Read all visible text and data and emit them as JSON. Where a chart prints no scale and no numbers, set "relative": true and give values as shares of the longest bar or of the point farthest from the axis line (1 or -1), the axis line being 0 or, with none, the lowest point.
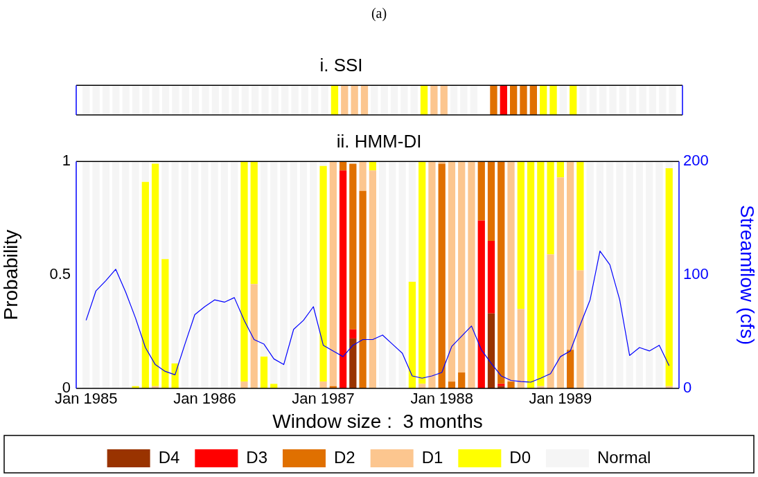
{
  "chart_data": [
    {
      "type": "bar",
      "title": "i. SSI",
      "annotations": [
        "(a)"
      ],
      "stacked": true,
      "relative": true,
      "grid": false,
      "legend": false,
      "x": [
        "1985-01",
        "1985-02",
        "1985-03",
        "1985-04",
        "1985-05",
        "1985-06",
        "1985-07",
        "1985-08",
        "1985-09",
        "1985-10",
        "1985-11",
        "1985-12",
        "1986-01",
        "1986-02",
        "1986-03",
        "1986-04",
        "1986-05",
        "1986-06",
        "1986-07",
        "1986-08",
        "1986-09",
        "1986-10",
        "1986-11",
        "1986-12",
        "1987-01",
        "1987-02",
        "1987-03",
        "1987-04",
        "1987-05",
        "1987-06",
        "1987-07",
        "1987-08",
        "1987-09",
        "1987-10",
        "1987-11",
        "1987-12",
        "1988-01",
        "1988-02",
        "1988-03",
        "1988-04",
        "1988-05",
        "1988-06",
        "1988-07",
        "1988-08",
        "1988-09",
        "1988-10",
        "1988-11",
        "1988-12",
        "1989-01",
        "1989-02",
        "1989-03",
        "1989-04",
        "1989-05",
        "1989-06",
        "1989-07",
        "1989-08",
        "1989-09",
        "1989-10",
        "1989-11",
        "1989-12"
      ],
      "xlim": [
        "1984-12",
        "1990-01"
      ],
      "series": [
        {
          "color": "#ff0000",
          "values": [
            null,
            null,
            null,
            null,
            null,
            null,
            null,
            null,
            null,
            null,
            null,
            null,
            null,
            null,
            null,
            null,
            null,
            null,
            null,
            null,
            null,
            null,
            null,
            null,
            null,
            null,
            null,
            null,
            null,
            null,
            null,
            null,
            null,
            null,
            null,
            null,
            null,
            null,
            null,
            null,
            null,
            null,
            1,
            null,
            null,
            null,
            null,
            null,
            null,
            null,
            null,
            null,
            null,
            null,
            null,
            null,
            null,
            null,
            null,
            null
          ]
        },
        {
          "color": "#e07000",
          "values": [
            null,
            null,
            null,
            null,
            null,
            null,
            null,
            null,
            null,
            null,
            null,
            null,
            null,
            null,
            null,
            null,
            null,
            null,
            null,
            null,
            null,
            null,
            null,
            null,
            null,
            null,
            null,
            null,
            null,
            null,
            null,
            null,
            null,
            null,
            null,
            null,
            null,
            null,
            null,
            null,
            null,
            1,
            null,
            1,
            1,
            1,
            null,
            null,
            null,
            null,
            null,
            null,
            null,
            null,
            null,
            null,
            null,
            null,
            null,
            null
          ]
        },
        {
          "color": "#fcc68f",
          "values": [
            null,
            null,
            null,
            null,
            null,
            null,
            null,
            null,
            null,
            null,
            null,
            null,
            null,
            null,
            null,
            null,
            null,
            null,
            null,
            null,
            null,
            null,
            null,
            null,
            null,
            null,
            1,
            1,
            1,
            null,
            null,
            null,
            null,
            null,
            null,
            1,
            1,
            null,
            null,
            null,
            null,
            null,
            null,
            null,
            null,
            null,
            null,
            null,
            null,
            null,
            null,
            null,
            null,
            null,
            null,
            null,
            null,
            null,
            null,
            null
          ]
        },
        {
          "color": "#ffff00",
          "values": [
            null,
            null,
            null,
            null,
            null,
            null,
            null,
            null,
            null,
            null,
            null,
            null,
            null,
            null,
            null,
            null,
            null,
            null,
            null,
            null,
            null,
            null,
            null,
            null,
            null,
            1,
            null,
            null,
            null,
            null,
            null,
            null,
            null,
            null,
            1,
            null,
            null,
            null,
            null,
            null,
            null,
            null,
            null,
            null,
            null,
            null,
            1,
            1,
            null,
            1,
            null,
            null,
            null,
            null,
            null,
            null,
            null,
            null,
            null,
            null
          ]
        },
        {
          "color": "#f5f5f5",
          "values": [
            1,
            1,
            1,
            1,
            1,
            1,
            1,
            1,
            1,
            1,
            1,
            1,
            1,
            1,
            1,
            1,
            1,
            1,
            1,
            1,
            1,
            1,
            1,
            1,
            1,
            null,
            null,
            null,
            null,
            1,
            1,
            1,
            1,
            1,
            null,
            null,
            null,
            1,
            1,
            1,
            null,
            null,
            null,
            null,
            null,
            null,
            null,
            null,
            1,
            null,
            1,
            1,
            1,
            1,
            1,
            1,
            1,
            1,
            1,
            1
          ]
        }
      ]
    },
    {
      "type": "bar",
      "title": "ii. HMM-DI",
      "xlabel": "Window size :  3 months",
      "ylabel": "Probability",
      "y2label": "Streamflow (cfs)",
      "stacked": true,
      "grid": false,
      "legend": "bottom",
      "x": [
        "1985-01",
        "1985-02",
        "1985-03",
        "1985-04",
        "1985-05",
        "1985-06",
        "1985-07",
        "1985-08",
        "1985-09",
        "1985-10",
        "1985-11",
        "1985-12",
        "1986-01",
        "1986-02",
        "1986-03",
        "1986-04",
        "1986-05",
        "1986-06",
        "1986-07",
        "1986-08",
        "1986-09",
        "1986-10",
        "1986-11",
        "1986-12",
        "1987-01",
        "1987-02",
        "1987-03",
        "1987-04",
        "1987-05",
        "1987-06",
        "1987-07",
        "1987-08",
        "1987-09",
        "1987-10",
        "1987-11",
        "1987-12",
        "1988-01",
        "1988-02",
        "1988-03",
        "1988-04",
        "1988-05",
        "1988-06",
        "1988-07",
        "1988-08",
        "1988-09",
        "1988-10",
        "1988-11",
        "1988-12",
        "1989-01",
        "1989-02",
        "1989-03",
        "1989-04",
        "1989-05",
        "1989-06",
        "1989-07",
        "1989-08",
        "1989-09",
        "1989-10",
        "1989-11",
        "1989-12"
      ],
      "xlim": [
        "1984-12",
        "1990-01"
      ],
      "xticks": [
        {
          "value": "1985-01",
          "label": "Jan 1985"
        },
        {
          "value": "1986-01",
          "label": "Jan 1986"
        },
        {
          "value": "1987-01",
          "label": "Jan 1987"
        },
        {
          "value": "1988-01",
          "label": "Jan 1988"
        },
        {
          "value": "1989-01",
          "label": "Jan 1989"
        }
      ],
      "ylim": [
        0,
        1
      ],
      "yticks": [
        0,
        0.5,
        1
      ],
      "y2lim": [
        0,
        200
      ],
      "y2ticks": [
        0,
        100,
        200
      ],
      "series": [
        {
          "name": "D4",
          "color": "#993300",
          "values": [
            null,
            null,
            null,
            null,
            null,
            null,
            null,
            null,
            null,
            null,
            null,
            null,
            null,
            null,
            null,
            null,
            null,
            null,
            null,
            null,
            null,
            null,
            null,
            null,
            null,
            null,
            null,
            0.22,
            null,
            null,
            null,
            null,
            null,
            null,
            null,
            null,
            null,
            null,
            null,
            null,
            null,
            0.33,
            0.01,
            null,
            null,
            null,
            null,
            null,
            null,
            null,
            null,
            null,
            null,
            null,
            null,
            null,
            null,
            null,
            null,
            null
          ]
        },
        {
          "name": "D3",
          "color": "#ff0000",
          "values": [
            null,
            null,
            null,
            null,
            null,
            null,
            null,
            null,
            null,
            null,
            null,
            null,
            null,
            null,
            null,
            null,
            null,
            null,
            null,
            null,
            null,
            null,
            null,
            null,
            null,
            null,
            0.96,
            0.04,
            null,
            null,
            null,
            null,
            null,
            null,
            null,
            null,
            null,
            null,
            null,
            null,
            0.74,
            0.32,
            0.01,
            null,
            null,
            null,
            null,
            null,
            null,
            null,
            null,
            null,
            null,
            null,
            null,
            null,
            null,
            null,
            null,
            null
          ]
        },
        {
          "name": "D2",
          "color": "#e07000",
          "values": [
            null,
            null,
            null,
            null,
            null,
            null,
            null,
            null,
            null,
            null,
            null,
            null,
            null,
            null,
            null,
            null,
            null,
            null,
            null,
            null,
            null,
            null,
            null,
            null,
            null,
            0.01,
            0.04,
            0.73,
            0.87,
            null,
            null,
            null,
            null,
            null,
            null,
            null,
            0.99,
            0.03,
            0.07,
            null,
            0.26,
            0.35,
            0.98,
            0.03,
            null,
            null,
            null,
            null,
            null,
            0.17,
            null,
            null,
            null,
            null,
            null,
            null,
            null,
            null,
            null,
            null
          ]
        },
        {
          "name": "D1",
          "color": "#fcc68f",
          "values": [
            null,
            null,
            null,
            null,
            null,
            null,
            null,
            0.01,
            null,
            null,
            null,
            null,
            null,
            null,
            null,
            null,
            0.03,
            0.46,
            null,
            null,
            null,
            null,
            null,
            null,
            0.03,
            0.99,
            null,
            null,
            0.13,
            0.96,
            null,
            null,
            null,
            null,
            0.02,
            1,
            0.01,
            0.97,
            0.93,
            1,
            null,
            null,
            null,
            0.97,
            0.35,
            null,
            0.01,
            0.59,
            0.93,
            0.83,
            0.52,
            null,
            null,
            null,
            null,
            null,
            null,
            null,
            null,
            0.01
          ]
        },
        {
          "name": "D0",
          "color": "#ffff00",
          "values": [
            null,
            null,
            null,
            null,
            null,
            0.01,
            0.91,
            0.98,
            0.57,
            0.11,
            null,
            null,
            null,
            null,
            null,
            null,
            0.97,
            0.54,
            0.14,
            0.02,
            null,
            null,
            null,
            null,
            0.95,
            null,
            null,
            null,
            null,
            0.04,
            null,
            null,
            null,
            0.47,
            0.98,
            null,
            null,
            null,
            null,
            null,
            null,
            null,
            null,
            null,
            0.65,
            1,
            0.99,
            0.41,
            0.07,
            null,
            0.48,
            null,
            null,
            null,
            null,
            null,
            null,
            null,
            null,
            0.96
          ]
        },
        {
          "name": "Normal",
          "color": "#f5f5f5",
          "values": [
            1,
            1,
            1,
            1,
            1,
            0.99,
            0.09,
            0.01,
            0.43,
            0.89,
            1,
            1,
            1,
            1,
            1,
            1,
            null,
            null,
            0.86,
            0.98,
            1,
            1,
            1,
            1,
            0.02,
            null,
            null,
            0.01,
            null,
            null,
            1,
            1,
            1,
            0.53,
            null,
            null,
            null,
            null,
            null,
            null,
            null,
            null,
            null,
            null,
            null,
            null,
            null,
            null,
            null,
            null,
            null,
            1,
            1,
            1,
            1,
            1,
            1,
            1,
            1,
            0.03
          ]
        },
        {
          "type": "line",
          "axis": "y2",
          "color": "#0000ff",
          "values": [
            60,
            86,
            95,
            105,
            85,
            62,
            36,
            21,
            15,
            12,
            39,
            65,
            72,
            78,
            76,
            80,
            60,
            43,
            39,
            26,
            21,
            52,
            60,
            72,
            38,
            33,
            28,
            38,
            43,
            43,
            47,
            39,
            31,
            11,
            9,
            11,
            14,
            37,
            46,
            55,
            34,
            22,
            11,
            7,
            6,
            5.5,
            9,
            13,
            28,
            33,
            56,
            78,
            121,
            109,
            78,
            29,
            36,
            33,
            38,
            20
          ]
        }
      ]
    }
  ]
}
